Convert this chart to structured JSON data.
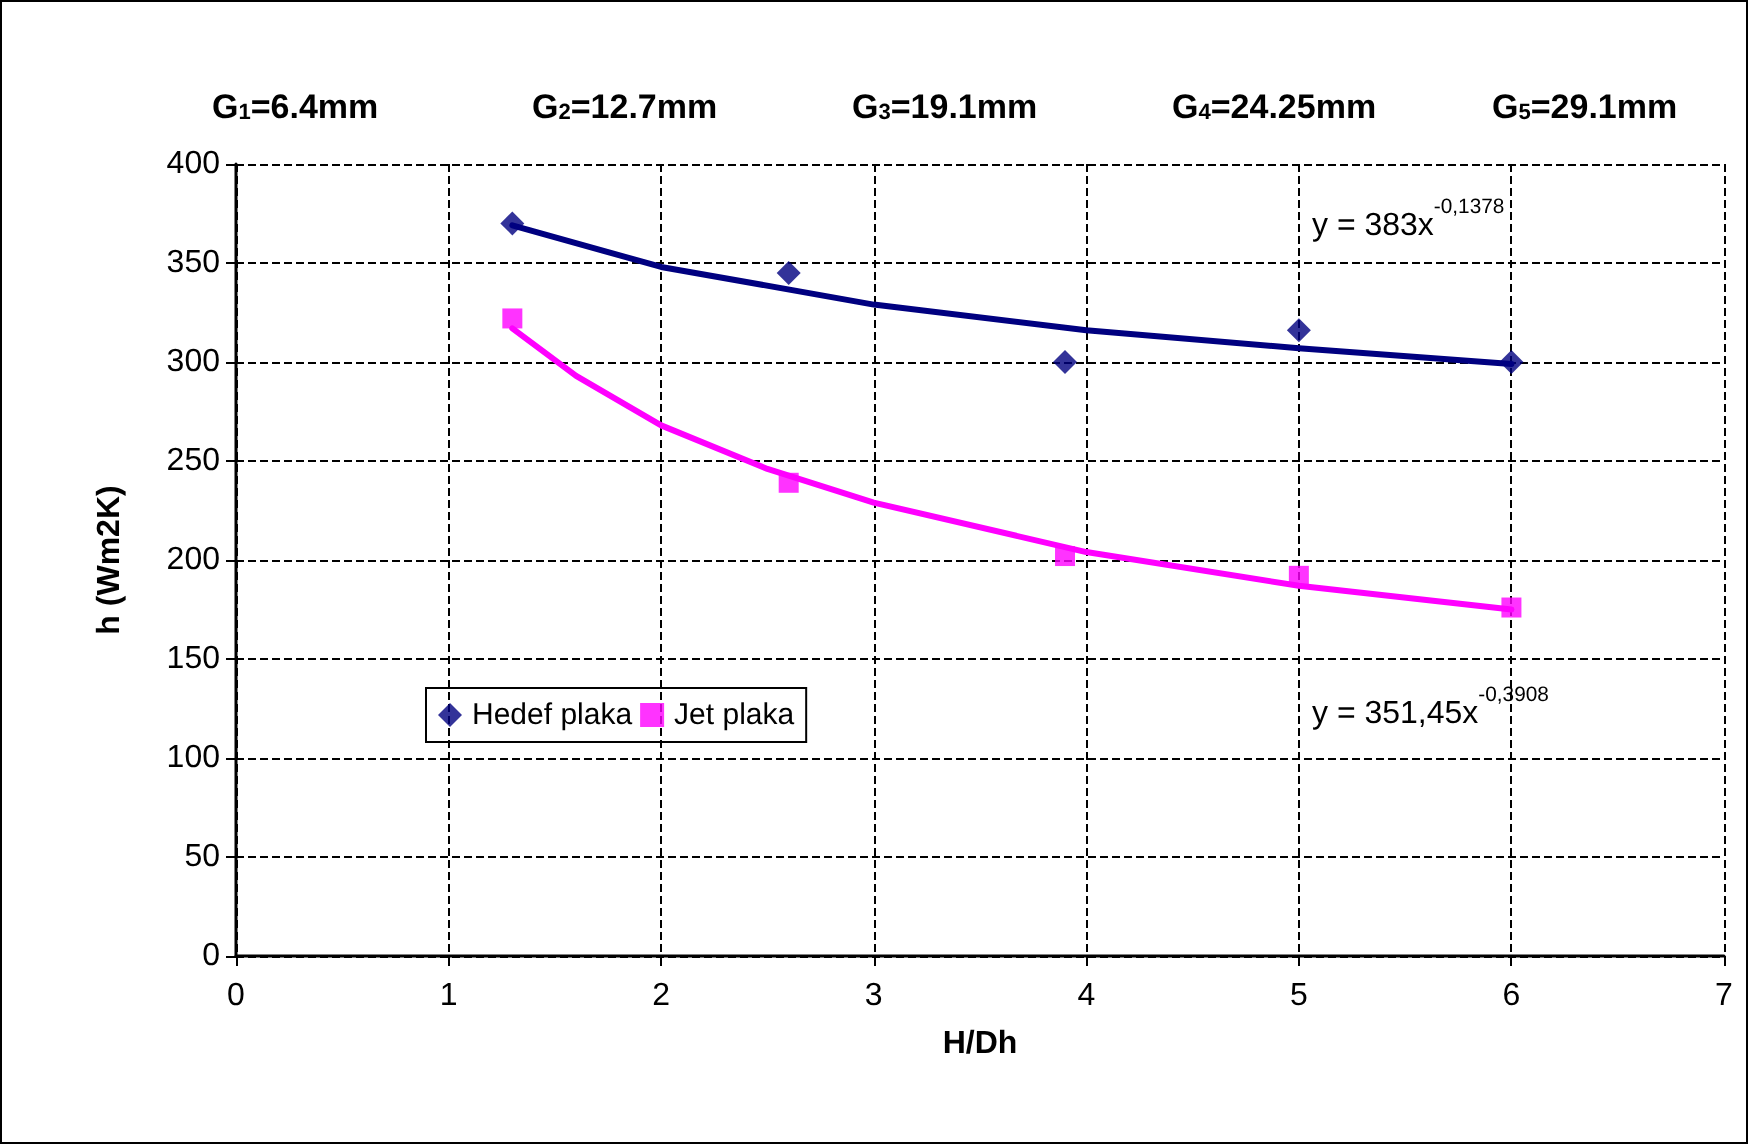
{
  "chart_data": {
    "type": "scatter",
    "xlabel": "H/Dh",
    "ylabel": "h (Wm2K)",
    "xlim": [
      0,
      7
    ],
    "xticks": [
      0,
      1,
      2,
      3,
      4,
      5,
      6,
      7
    ],
    "ylim": [
      0,
      400
    ],
    "yticks": [
      0,
      50,
      100,
      150,
      200,
      250,
      300,
      350,
      400
    ],
    "grid": true,
    "legend": "left",
    "series": [
      {
        "name": "Hedef plaka",
        "color": "#000080",
        "marker": "diamond",
        "x": [
          1.3,
          2.6,
          3.9,
          5,
          6
        ],
        "values": [
          370,
          345,
          300,
          316,
          300
        ]
      },
      {
        "name": "Jet plaka",
        "color": "#ff00ff",
        "marker": "square",
        "x": [
          1.3,
          2.6,
          3.9,
          5,
          6
        ],
        "values": [
          322,
          239,
          202,
          192,
          176
        ]
      },
      {
        "type": "line",
        "color": "#000080",
        "marker": "none",
        "x": [
          1.3,
          2,
          3,
          4,
          5,
          6
        ],
        "values": [
          369,
          348,
          329,
          316,
          307,
          299
        ]
      },
      {
        "type": "line",
        "color": "#ff00ff",
        "marker": "none",
        "x": [
          1.3,
          1.6,
          2,
          2.5,
          3,
          4,
          5,
          6
        ],
        "values": [
          317,
          293,
          268,
          246,
          229,
          204,
          187,
          175
        ]
      }
    ],
    "annotations": [
      "G$_{1}$=6.4mm",
      "G$_{2}$=12.7mm",
      "G$_{3}$=19.1mm",
      "G$_{4}$=24.25mm",
      "G$_{5}$=29.1mm",
      "y = 383x$^{-0,1378}$",
      "y = 351,45x$^{-0,3908}$"
    ]
  }
}
